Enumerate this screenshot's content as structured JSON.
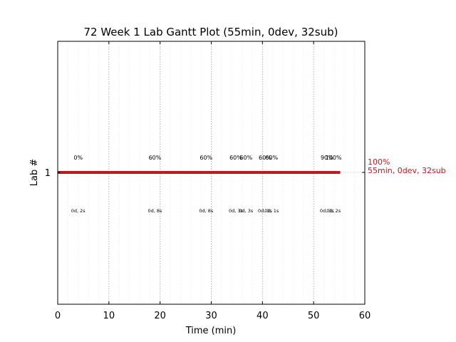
{
  "chart_data": {
    "type": "gantt",
    "title": "72 Week 1 Lab Gantt Plot (55min, 0dev, 32sub)",
    "xlabel": "Time (min)",
    "ylabel": "Lab #",
    "xlim": [
      0,
      60
    ],
    "xticks": [
      0,
      10,
      20,
      30,
      40,
      50,
      60
    ],
    "xtick_labels": [
      "0",
      "10",
      "20",
      "30",
      "40",
      "50",
      "60"
    ],
    "yticks": [
      1
    ],
    "ytick_labels": [
      "1"
    ],
    "grid": "vertical dotted (major every 10, minor every 2)",
    "bars": [
      {
        "lab": 1,
        "start": 0,
        "end": 55.2,
        "color": "#c0181f",
        "end_label_pct": "100%",
        "end_label_summary": "55min, 0dev, 32sub"
      }
    ],
    "annotations": [
      {
        "x": 4,
        "pct": "0%",
        "sub": "0d, 2s"
      },
      {
        "x": 19,
        "pct": "60%",
        "sub": "0d, 8s"
      },
      {
        "x": 29,
        "pct": "60%",
        "sub": "0d, 8s"
      },
      {
        "x": 34.8,
        "pct": "60%",
        "sub": "0d, 3s"
      },
      {
        "x": 36.8,
        "pct": "60%",
        "sub": "0d, 3s"
      },
      {
        "x": 40.5,
        "pct": "60%",
        "sub": "0d, 1s"
      },
      {
        "x": 41.8,
        "pct": "60%",
        "sub": "0d, 1s"
      },
      {
        "x": 52.6,
        "pct": "90%",
        "sub": "0d, 1s"
      },
      {
        "x": 53.9,
        "pct": "100%",
        "sub": "0d, 2s"
      }
    ]
  }
}
